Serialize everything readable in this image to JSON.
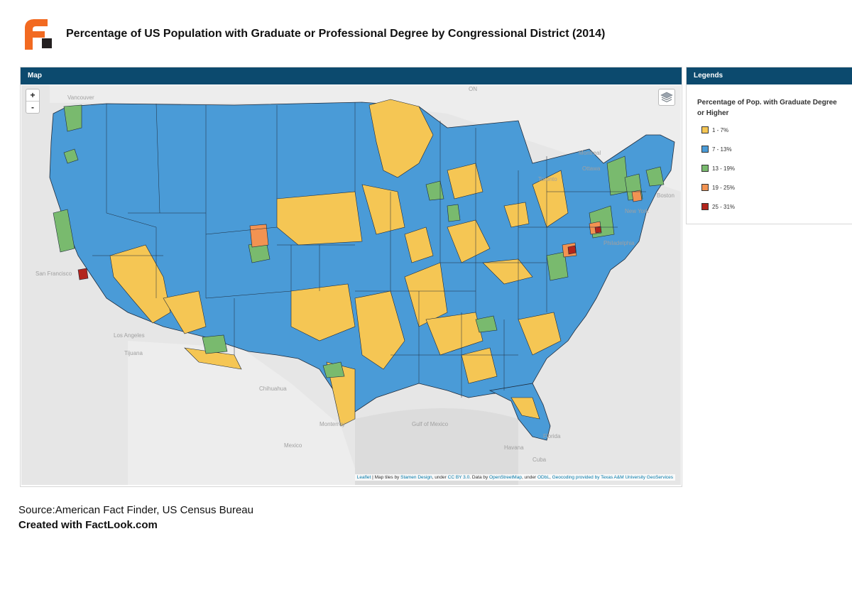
{
  "header": {
    "title": "Percentage of US Population with Graduate or Professional Degree by Congressional District (2014)"
  },
  "map_panel": {
    "label": "Map",
    "zoom_in": "+",
    "zoom_out": "-",
    "layers_icon": "layers-icon",
    "attribution": {
      "leaflet": "Leaflet",
      "t1": " | Map tiles by ",
      "stamen": "Stamen Design",
      "t2": ", under ",
      "ccby": "CC BY 3.0",
      "t3": ". Data by ",
      "osm": "OpenStreetMap",
      "t4": ", under ",
      "odbl": "ODbL",
      "t5": ", ",
      "geo": "Geocoding provided by Texas A&M University GeoServices"
    },
    "place_labels": [
      "Vancouver",
      "ON",
      "Montreal",
      "Toronto",
      "Ottawa",
      "Boston",
      "San Francisco",
      "Los Angeles",
      "Tijuana",
      "Chihuahua",
      "Monterrey",
      "Mexico",
      "Gulf of Mexico",
      "Florida",
      "Havana",
      "Cuba",
      "Philadelphia",
      "New York"
    ]
  },
  "legend": {
    "panel_label": "Legends",
    "title": "Percentage of Pop. with Graduate Degree or Higher",
    "items": [
      {
        "label": "1 - 7%",
        "color": "#f5c654"
      },
      {
        "label": "7 - 13%",
        "color": "#4a9bd7"
      },
      {
        "label": "13 - 19%",
        "color": "#79ba6e"
      },
      {
        "label": "19 - 25%",
        "color": "#f29352"
      },
      {
        "label": "25 - 31%",
        "color": "#b2241c"
      }
    ]
  },
  "colors": {
    "header_bar": "#0c4a6e",
    "logo_orange": "#f26a21",
    "logo_dark": "#231f20",
    "link": "#0078a8"
  },
  "footer": {
    "source": "Source:American Fact Finder, US Census Bureau",
    "created": "Created with FactLook.com"
  }
}
